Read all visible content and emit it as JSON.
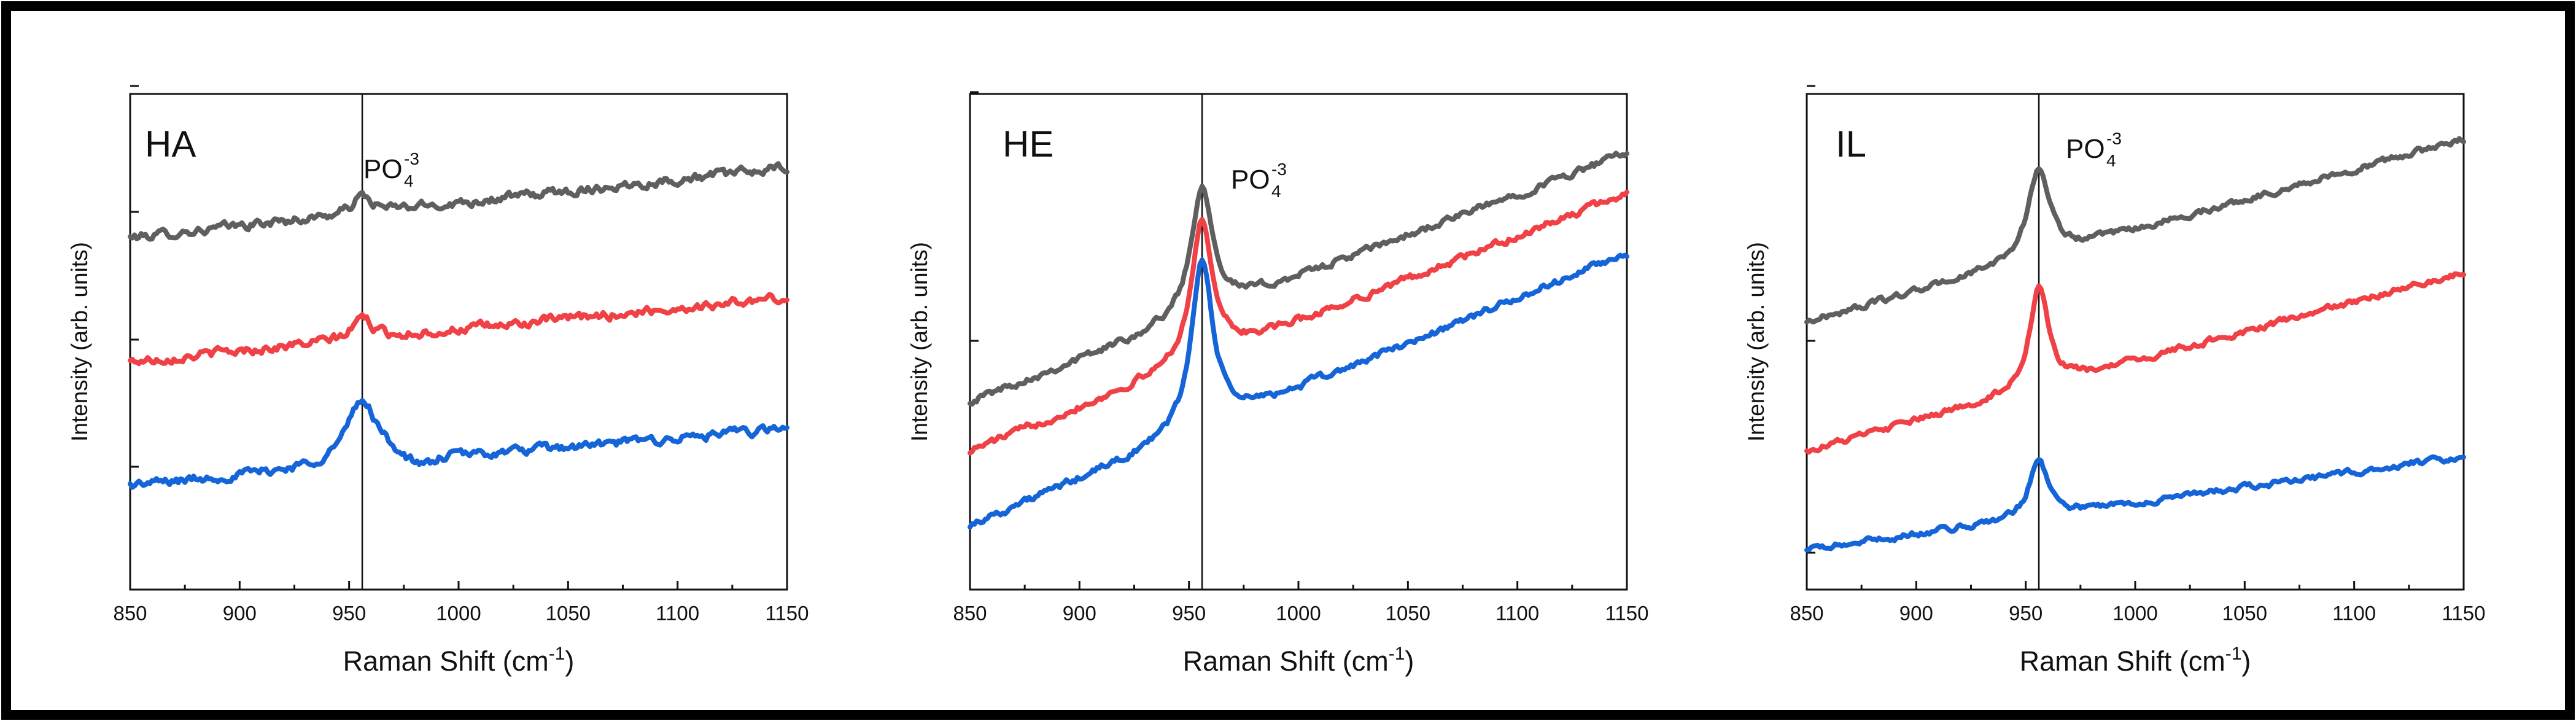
{
  "chart_data": [
    {
      "type": "line",
      "panel_label": "HA",
      "xlabel_main": "Raman Shift (cm",
      "xlabel_sup": "-1",
      "xlabel_end": ")",
      "ylabel": "Intensity (arb. units)",
      "xlim": [
        850,
        1150
      ],
      "ylim": [
        0,
        100
      ],
      "x_ticks": [
        "850",
        "900",
        "950",
        "1000",
        "1050",
        "1100",
        "1150"
      ],
      "reference_line_x": 956,
      "annotation": {
        "base": "PO",
        "sub": "4",
        "sup": "-3"
      },
      "series": [
        {
          "name": "top",
          "color": "#5f5f5f",
          "baseline": 71,
          "slope": 0.047,
          "peak_height": 3.5,
          "peak_width": 5,
          "noise": 0.9
        },
        {
          "name": "middle",
          "color": "#ef4146",
          "baseline": 46,
          "slope": 0.043,
          "peak_height": 4.5,
          "peak_width": 5,
          "noise": 0.9
        },
        {
          "name": "bottom",
          "color": "#1565d8",
          "baseline": 21,
          "slope": 0.038,
          "peak_height": 13,
          "peak_width": 9,
          "noise": 0.9
        }
      ]
    },
    {
      "type": "line",
      "panel_label": "HE",
      "xlabel_main": "Raman Shift (cm",
      "xlabel_sup": "-1",
      "xlabel_end": ")",
      "ylabel": "Intensity (arb. units)",
      "xlim": [
        850,
        1150
      ],
      "ylim": [
        0,
        100
      ],
      "x_ticks": [
        "850",
        "900",
        "950",
        "1000",
        "1050",
        "1100",
        "1150"
      ],
      "reference_line_x": 956,
      "annotation": {
        "base": "PO",
        "sub": "4",
        "sup": "-3"
      },
      "series": [
        {
          "name": "top",
          "color": "#5f5f5f",
          "baseline": 38,
          "slope": 0.167,
          "peak_height": 26,
          "peak_width": 6,
          "noise": 0.7
        },
        {
          "name": "middle",
          "color": "#ef4146",
          "baseline": 28,
          "slope": 0.173,
          "peak_height": 28,
          "peak_width": 6,
          "noise": 0.7
        },
        {
          "name": "bottom",
          "color": "#1565d8",
          "baseline": 13,
          "slope": 0.183,
          "peak_height": 34,
          "peak_width": 6,
          "noise": 0.7
        }
      ]
    },
    {
      "type": "line",
      "panel_label": "IL",
      "xlabel_main": "Raman Shift (cm",
      "xlabel_sup": "-1",
      "xlabel_end": ")",
      "ylabel": "Intensity (arb. units)",
      "xlim": [
        850,
        1150
      ],
      "ylim": [
        0,
        100
      ],
      "x_ticks": [
        "850",
        "900",
        "950",
        "1000",
        "1050",
        "1100",
        "1150"
      ],
      "reference_line_x": 956,
      "annotation": {
        "base": "PO",
        "sub": "4",
        "sup": "-3"
      },
      "series": [
        {
          "name": "top",
          "color": "#5f5f5f",
          "baseline": 54,
          "slope": 0.123,
          "peak_height": 18,
          "peak_width": 6,
          "noise": 0.6
        },
        {
          "name": "middle",
          "color": "#ef4146",
          "baseline": 28,
          "slope": 0.12,
          "peak_height": 21,
          "peak_width": 5,
          "noise": 0.6
        },
        {
          "name": "bottom",
          "color": "#1565d8",
          "baseline": 8,
          "slope": 0.063,
          "peak_height": 12,
          "peak_width": 5,
          "noise": 0.6
        }
      ]
    }
  ],
  "colors": {
    "frame": "#000000",
    "axes": "#111111",
    "reference": "#111111"
  }
}
